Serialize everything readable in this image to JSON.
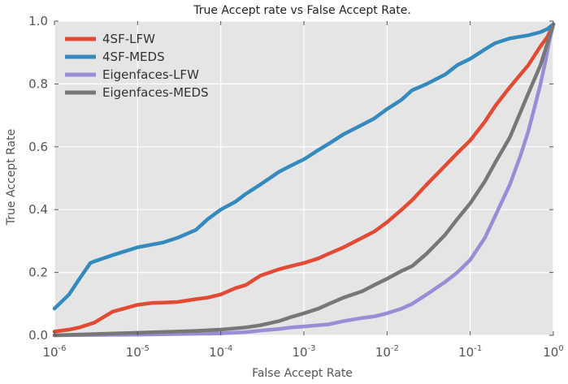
{
  "chart_data": {
    "type": "line",
    "title": "True Accept rate vs False Accept Rate.",
    "xlabel": "False Accept Rate",
    "ylabel": "True Accept Rate",
    "xscale": "log",
    "xlim": [
      1e-06,
      1
    ],
    "ylim": [
      0,
      1
    ],
    "grid": true,
    "legend": "top-left",
    "x_ticks": [
      {
        "value": 1e-06,
        "base": "10",
        "exp": "-6"
      },
      {
        "value": 1e-05,
        "base": "10",
        "exp": "-5"
      },
      {
        "value": 0.0001,
        "base": "10",
        "exp": "-4"
      },
      {
        "value": 0.001,
        "base": "10",
        "exp": "-3"
      },
      {
        "value": 0.01,
        "base": "10",
        "exp": "-2"
      },
      {
        "value": 0.1,
        "base": "10",
        "exp": "-1"
      },
      {
        "value": 1,
        "base": "10",
        "exp": "0"
      }
    ],
    "y_ticks": [
      {
        "value": 0.0,
        "label": "0.0"
      },
      {
        "value": 0.2,
        "label": "0.2"
      },
      {
        "value": 0.4,
        "label": "0.4"
      },
      {
        "value": 0.6,
        "label": "0.6"
      },
      {
        "value": 0.8,
        "label": "0.8"
      },
      {
        "value": 1.0,
        "label": "1.0"
      }
    ],
    "series": [
      {
        "name": "4SF-LFW",
        "color": "#e24a33",
        "x": [
          1e-06,
          1.5e-06,
          2e-06,
          3e-06,
          5e-06,
          8e-06,
          1e-05,
          1.5e-05,
          2e-05,
          3e-05,
          5e-05,
          7e-05,
          0.0001,
          0.00015,
          0.0002,
          0.0003,
          0.0005,
          0.0007,
          0.001,
          0.0015,
          0.002,
          0.003,
          0.005,
          0.007,
          0.01,
          0.015,
          0.02,
          0.03,
          0.05,
          0.07,
          0.1,
          0.15,
          0.2,
          0.3,
          0.5,
          0.7,
          0.85,
          1
        ],
        "y": [
          0.012,
          0.018,
          0.025,
          0.04,
          0.075,
          0.09,
          0.097,
          0.103,
          0.104,
          0.106,
          0.115,
          0.12,
          0.13,
          0.15,
          0.16,
          0.19,
          0.21,
          0.22,
          0.23,
          0.245,
          0.26,
          0.28,
          0.31,
          0.33,
          0.36,
          0.4,
          0.43,
          0.48,
          0.54,
          0.58,
          0.62,
          0.68,
          0.73,
          0.79,
          0.86,
          0.92,
          0.95,
          0.99
        ]
      },
      {
        "name": "4SF-MEDS",
        "color": "#348abd",
        "x": [
          1e-06,
          1.5e-06,
          2e-06,
          2.7e-06,
          3e-06,
          5e-06,
          1e-05,
          2e-05,
          3e-05,
          5e-05,
          7e-05,
          0.0001,
          0.00015,
          0.0002,
          0.0003,
          0.0005,
          0.0007,
          0.001,
          0.0015,
          0.002,
          0.003,
          0.005,
          0.007,
          0.01,
          0.015,
          0.02,
          0.03,
          0.05,
          0.07,
          0.1,
          0.15,
          0.2,
          0.3,
          0.5,
          0.7,
          0.85,
          1
        ],
        "y": [
          0.085,
          0.13,
          0.18,
          0.23,
          0.235,
          0.255,
          0.28,
          0.295,
          0.31,
          0.335,
          0.37,
          0.4,
          0.425,
          0.45,
          0.48,
          0.52,
          0.54,
          0.56,
          0.59,
          0.61,
          0.64,
          0.67,
          0.69,
          0.72,
          0.75,
          0.78,
          0.8,
          0.83,
          0.86,
          0.88,
          0.91,
          0.93,
          0.945,
          0.955,
          0.965,
          0.975,
          0.99
        ]
      },
      {
        "name": "Eigenfaces-LFW",
        "color": "#988ed5",
        "x": [
          1e-06,
          1e-05,
          0.0001,
          0.0002,
          0.0003,
          0.0005,
          0.0007,
          0.001,
          0.002,
          0.003,
          0.005,
          0.007,
          0.01,
          0.015,
          0.02,
          0.03,
          0.05,
          0.07,
          0.1,
          0.15,
          0.2,
          0.3,
          0.4,
          0.5,
          0.6,
          0.7,
          0.8,
          0.9,
          1
        ],
        "y": [
          0.0,
          0.002,
          0.006,
          0.01,
          0.015,
          0.02,
          0.025,
          0.028,
          0.035,
          0.045,
          0.055,
          0.06,
          0.07,
          0.085,
          0.1,
          0.13,
          0.17,
          0.2,
          0.24,
          0.31,
          0.38,
          0.48,
          0.57,
          0.65,
          0.73,
          0.8,
          0.87,
          0.94,
          0.99
        ]
      },
      {
        "name": "Eigenfaces-MEDS",
        "color": "#777777",
        "x": [
          1e-06,
          1e-05,
          5e-05,
          0.0001,
          0.0002,
          0.0003,
          0.0005,
          0.0007,
          0.001,
          0.0015,
          0.002,
          0.003,
          0.005,
          0.007,
          0.01,
          0.015,
          0.02,
          0.03,
          0.05,
          0.07,
          0.1,
          0.15,
          0.2,
          0.3,
          0.5,
          0.7,
          0.85,
          1
        ],
        "y": [
          0.0,
          0.008,
          0.014,
          0.018,
          0.025,
          0.032,
          0.045,
          0.058,
          0.07,
          0.085,
          0.1,
          0.12,
          0.14,
          0.16,
          0.18,
          0.205,
          0.22,
          0.26,
          0.32,
          0.37,
          0.42,
          0.49,
          0.55,
          0.63,
          0.77,
          0.86,
          0.93,
          0.99
        ]
      }
    ]
  }
}
